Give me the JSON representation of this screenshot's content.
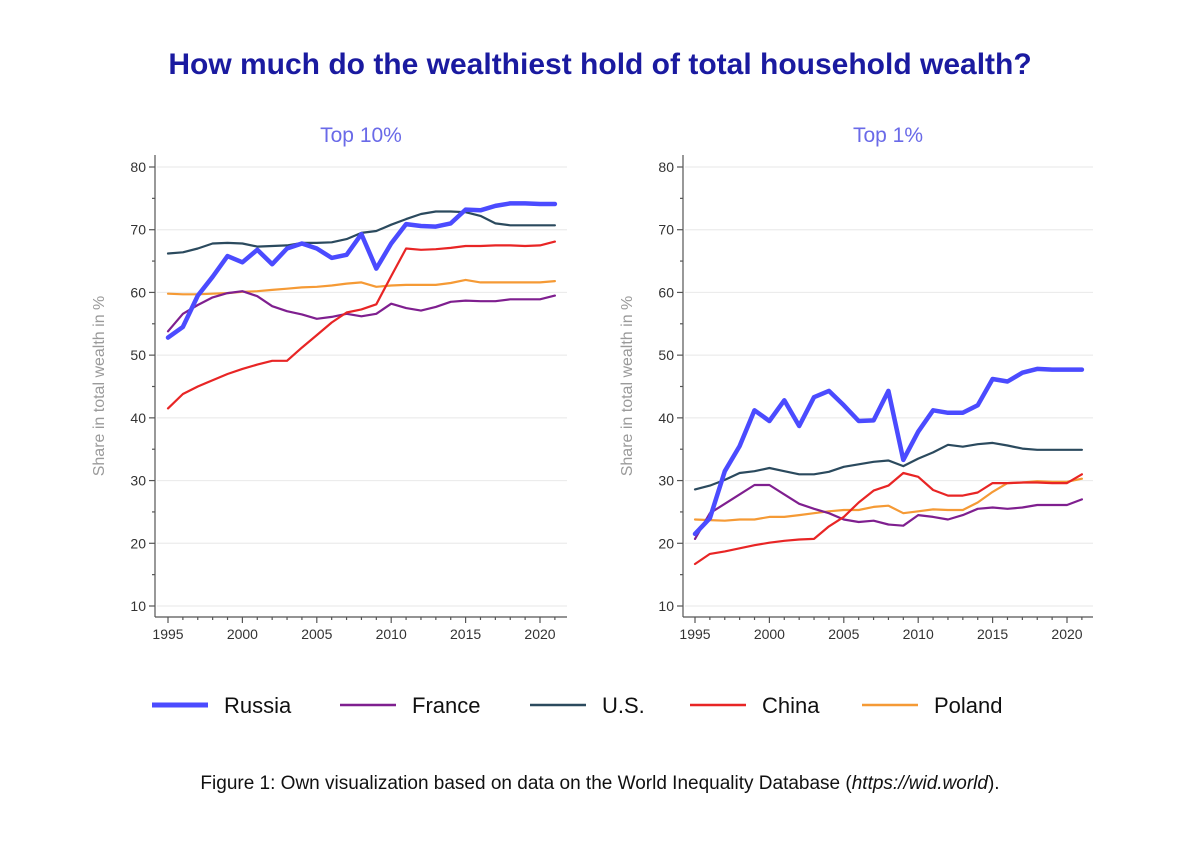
{
  "title": "How much do the wealthiest hold of total household wealth?",
  "caption": {
    "prefix": "Figure 1: Own visualization based on data on the World Inequality Database (",
    "link": "https://wid.world",
    "suffix": ")."
  },
  "legend": [
    {
      "name": "Russia",
      "color": "#4b4bff"
    },
    {
      "name": "France",
      "color": "#7f1f8f"
    },
    {
      "name": "U.S.",
      "color": "#2b4a5e"
    },
    {
      "name": "China",
      "color": "#e82525"
    },
    {
      "name": "Poland",
      "color": "#f59a35"
    }
  ],
  "chart_data": [
    {
      "type": "line",
      "title": "Top 10%",
      "xlabel": "",
      "ylabel": "Share in total wealth in %",
      "ylim": [
        10,
        80
      ],
      "xlim": [
        1995,
        2021
      ],
      "yticks": [
        10,
        20,
        30,
        40,
        50,
        60,
        70,
        80
      ],
      "xticks": [
        1995,
        2000,
        2005,
        2010,
        2015,
        2020
      ],
      "grid": true,
      "legend_position": "bottom",
      "x": [
        1995,
        1996,
        1997,
        1998,
        1999,
        2000,
        2001,
        2002,
        2003,
        2004,
        2005,
        2006,
        2007,
        2008,
        2009,
        2010,
        2011,
        2012,
        2013,
        2014,
        2015,
        2016,
        2017,
        2018,
        2019,
        2020,
        2021
      ],
      "series": [
        {
          "name": "U.S.",
          "color": "#2b4a5e",
          "values": [
            66.2,
            66.4,
            67.0,
            67.8,
            67.9,
            67.8,
            67.3,
            67.4,
            67.5,
            67.9,
            67.9,
            68.0,
            68.5,
            69.5,
            69.8,
            70.8,
            71.7,
            72.5,
            72.9,
            72.9,
            72.8,
            72.2,
            71.0,
            70.7,
            70.7,
            70.7,
            70.7
          ]
        },
        {
          "name": "Poland",
          "color": "#f59a35",
          "values": [
            59.8,
            59.7,
            59.7,
            59.8,
            59.9,
            60.1,
            60.2,
            60.4,
            60.6,
            60.8,
            60.9,
            61.1,
            61.4,
            61.6,
            60.9,
            61.1,
            61.2,
            61.2,
            61.2,
            61.5,
            62.0,
            61.6,
            61.6,
            61.6,
            61.6,
            61.6,
            61.8
          ]
        },
        {
          "name": "France",
          "color": "#7f1f8f",
          "values": [
            53.8,
            56.6,
            58.0,
            59.2,
            59.9,
            60.2,
            59.4,
            57.8,
            57.0,
            56.5,
            55.8,
            56.1,
            56.6,
            56.2,
            56.6,
            58.2,
            57.5,
            57.1,
            57.7,
            58.5,
            58.7,
            58.6,
            58.6,
            58.9,
            58.9,
            58.9,
            59.5
          ]
        },
        {
          "name": "China",
          "color": "#e82525",
          "values": [
            41.5,
            43.8,
            45.0,
            46.0,
            47.0,
            47.8,
            48.5,
            49.1,
            49.1,
            51.2,
            53.2,
            55.2,
            56.8,
            57.3,
            58.1,
            62.6,
            67.0,
            66.8,
            66.9,
            67.1,
            67.4,
            67.4,
            67.5,
            67.5,
            67.4,
            67.5,
            68.1
          ]
        },
        {
          "name": "Russia",
          "color": "#4b4bff",
          "values": [
            52.8,
            54.5,
            59.5,
            62.5,
            65.8,
            64.8,
            66.8,
            64.5,
            67.0,
            67.8,
            67.0,
            65.5,
            66.0,
            69.3,
            63.8,
            67.8,
            70.9,
            70.6,
            70.5,
            71.0,
            73.2,
            73.1,
            73.8,
            74.2,
            74.2,
            74.1,
            74.1
          ]
        }
      ]
    },
    {
      "type": "line",
      "title": "Top 1%",
      "xlabel": "",
      "ylabel": "Share in total wealth in %",
      "ylim": [
        10,
        80
      ],
      "xlim": [
        1995,
        2021
      ],
      "yticks": [
        10,
        20,
        30,
        40,
        50,
        60,
        70,
        80
      ],
      "xticks": [
        1995,
        2000,
        2005,
        2010,
        2015,
        2020
      ],
      "grid": true,
      "legend_position": "bottom",
      "x": [
        1995,
        1996,
        1997,
        1998,
        1999,
        2000,
        2001,
        2002,
        2003,
        2004,
        2005,
        2006,
        2007,
        2008,
        2009,
        2010,
        2011,
        2012,
        2013,
        2014,
        2015,
        2016,
        2017,
        2018,
        2019,
        2020,
        2021
      ],
      "series": [
        {
          "name": "U.S.",
          "color": "#2b4a5e",
          "values": [
            28.6,
            29.2,
            30.1,
            31.2,
            31.5,
            32.0,
            31.5,
            31.0,
            31.0,
            31.4,
            32.2,
            32.6,
            33.0,
            33.2,
            32.3,
            33.5,
            34.5,
            35.7,
            35.4,
            35.8,
            36.0,
            35.6,
            35.1,
            34.9,
            34.9,
            34.9,
            34.9
          ]
        },
        {
          "name": "Poland",
          "color": "#f59a35",
          "values": [
            23.8,
            23.7,
            23.6,
            23.8,
            23.8,
            24.2,
            24.2,
            24.5,
            24.8,
            25.1,
            25.3,
            25.3,
            25.8,
            26.0,
            24.8,
            25.1,
            25.4,
            25.3,
            25.3,
            26.5,
            28.2,
            29.6,
            29.7,
            29.9,
            29.8,
            29.8,
            30.3
          ]
        },
        {
          "name": "France",
          "color": "#7f1f8f",
          "values": [
            20.7,
            24.8,
            26.3,
            27.8,
            29.3,
            29.3,
            27.8,
            26.3,
            25.5,
            24.8,
            23.8,
            23.4,
            23.6,
            23.0,
            22.8,
            24.5,
            24.2,
            23.8,
            24.5,
            25.5,
            25.7,
            25.5,
            25.7,
            26.1,
            26.1,
            26.1,
            27.0
          ]
        },
        {
          "name": "China",
          "color": "#e82525",
          "values": [
            16.7,
            18.3,
            18.7,
            19.2,
            19.7,
            20.1,
            20.4,
            20.6,
            20.7,
            22.7,
            24.2,
            26.5,
            28.4,
            29.2,
            31.2,
            30.6,
            28.5,
            27.6,
            27.6,
            28.1,
            29.6,
            29.6,
            29.7,
            29.7,
            29.6,
            29.6,
            31.0
          ]
        },
        {
          "name": "Russia",
          "color": "#4b4bff",
          "values": [
            21.5,
            24.0,
            31.5,
            35.5,
            41.2,
            39.5,
            42.8,
            38.7,
            43.3,
            44.3,
            42.0,
            39.5,
            39.6,
            44.3,
            33.3,
            37.8,
            41.2,
            40.8,
            40.8,
            42.0,
            46.2,
            45.8,
            47.2,
            47.8,
            47.7,
            47.7,
            47.7
          ]
        }
      ]
    }
  ]
}
